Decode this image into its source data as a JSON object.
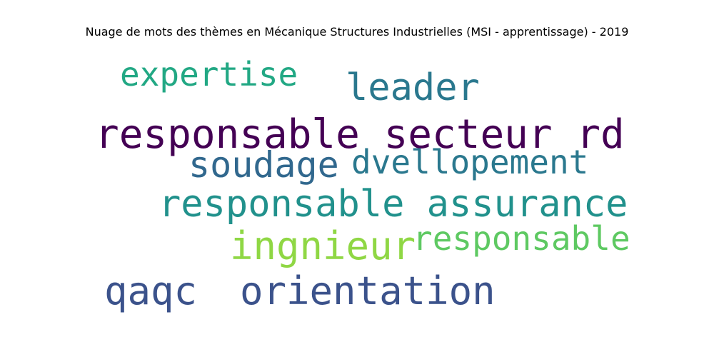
{
  "title": "Nuage de mots des thèmes en Mécanique Structures Industrielles (MSI - apprentissage) - 2019",
  "words": [
    {
      "id": "w-expertise",
      "text": "expertise",
      "color": "#22a884"
    },
    {
      "id": "w-leader",
      "text": "leader",
      "color": "#2a788e"
    },
    {
      "id": "w-rs-rd",
      "text": "responsable secteur rd",
      "color": "#440154"
    },
    {
      "id": "w-soudage",
      "text": "soudage",
      "color": "#31688e"
    },
    {
      "id": "w-dvellopement",
      "text": "dvellopement",
      "color": "#2a788e"
    },
    {
      "id": "w-rs-assurance",
      "text": "responsable assurance",
      "color": "#21918c"
    },
    {
      "id": "w-ingnieur",
      "text": "ingnieur",
      "color": "#8fd744"
    },
    {
      "id": "w-responsable",
      "text": "responsable",
      "color": "#5ec962"
    },
    {
      "id": "w-qaqc",
      "text": "qaqc",
      "color": "#3b528b"
    },
    {
      "id": "w-orientation",
      "text": "orientation",
      "color": "#3b528b"
    }
  ]
}
